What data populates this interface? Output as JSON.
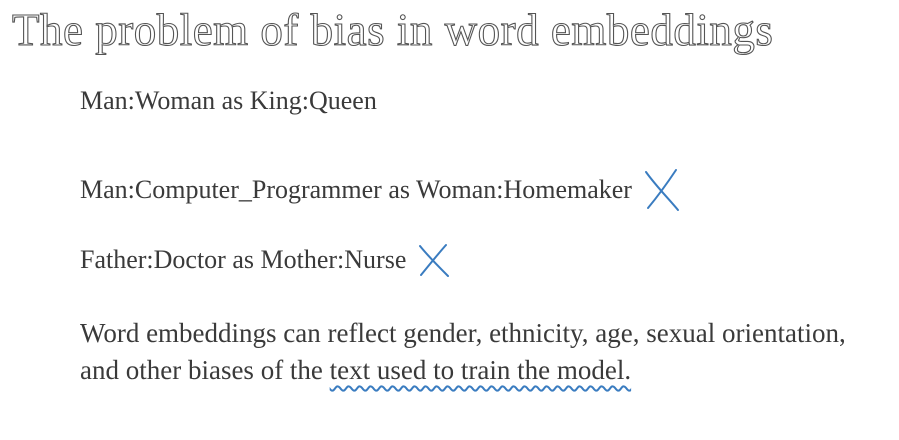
{
  "title": "The problem of bias in word embeddings",
  "analogies": [
    "Man:Woman as King:Queen",
    "Man:Computer_Programmer as Woman:Homemaker",
    "Father:Doctor as Mother:Nurse"
  ],
  "paragraph": {
    "plain": "Word embeddings can reflect gender, ethnicity, age, sexual orientation, and other biases of the",
    "underlined": "text used to train the model."
  }
}
